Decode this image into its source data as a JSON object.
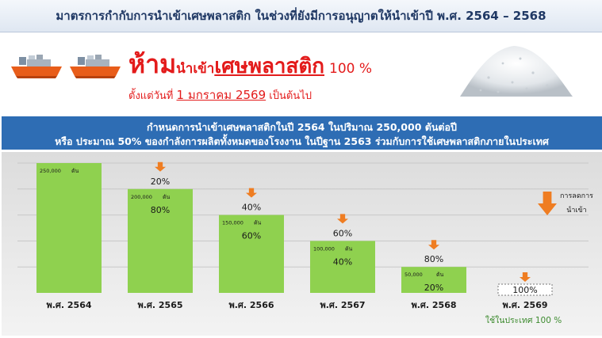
{
  "header": {
    "title": "มาตรการกำกับการนำเข้าเศษพลาสติก ในช่วงที่ยังมีการอนุญาตให้นำเข้าปี พ.ศ. 2564 – 2568"
  },
  "ban": {
    "big": "ห้าม",
    "mid": "นำเข้า",
    "word": "เศษพลาสติก",
    "percent": "100 %",
    "from_prefix": "ตั้งแต่วันที่",
    "from_date": "1 มกราคม 2569",
    "from_suffix": "เป็นต้นไป"
  },
  "band": {
    "line1": "กำหนดการนำเข้าเศษพลาสติกในปี 2564 ในปริมาณ 250,000 ตันต่อปี",
    "line2": "หรือ ประมาณ 50% ของกำลังการผลิตทั้งหมดของโรงงาน ในปีฐาน 2563 ร่วมกับการใช้เศษพลาสติกภายในประเทศ"
  },
  "colors": {
    "bar": "#8fd14f",
    "arrow": "#ef7d22",
    "ban_red": "#e31b1b",
    "band_blue": "#2e6db4",
    "domestic_green": "#3d8b2f"
  },
  "chart_data": {
    "type": "bar",
    "categories": [
      "พ.ศ. 2564",
      "พ.ศ. 2565",
      "พ.ศ. 2566",
      "พ.ศ. 2567",
      "พ.ศ. 2568",
      "พ.ศ. 2569"
    ],
    "values": [
      250000,
      200000,
      150000,
      100000,
      50000,
      0
    ],
    "value_labels": [
      "250,000",
      "200,000",
      "150,000",
      "100,000",
      "50,000",
      ""
    ],
    "unit": "ตัน",
    "import_share": [
      "",
      "80%",
      "60%",
      "40%",
      "20%",
      ""
    ],
    "reduction": [
      "",
      "20%",
      "40%",
      "60%",
      "80%",
      "100%"
    ],
    "legend": [
      "การลดการ",
      "นำเข้า"
    ],
    "note": "ใช้ในประเทศ 100 %",
    "ylim": [
      0,
      250000
    ]
  }
}
